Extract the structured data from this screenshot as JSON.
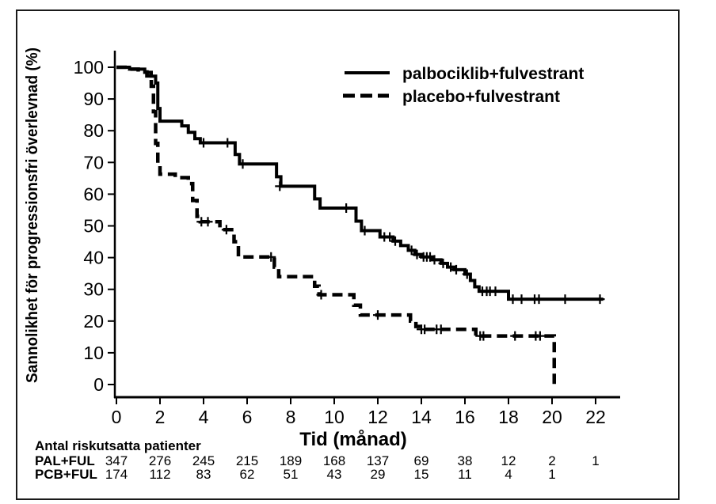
{
  "figure": {
    "background": "#ffffff",
    "border_color": "#1a1a1a",
    "line_color": "#000000"
  },
  "chart_data": {
    "type": "line",
    "subtype": "kaplan-meier-step-survival",
    "title": "",
    "xlabel": "Tid (månad)",
    "ylabel": "Sannolikhet för progressionsfri överlevnad (%)",
    "xlim": [
      0,
      23.2
    ],
    "ylim": [
      0,
      100
    ],
    "x_ticks": [
      0,
      2,
      4,
      6,
      8,
      10,
      12,
      14,
      16,
      18,
      20,
      22
    ],
    "y_ticks": [
      0,
      10,
      20,
      30,
      40,
      50,
      60,
      70,
      80,
      90,
      100
    ],
    "grid": false,
    "legend_position": "top-center-inside",
    "series": [
      {
        "name": "palbociklib+fulvestrant",
        "line_style": "solid",
        "color": "#000000",
        "steps": [
          [
            0,
            100
          ],
          [
            0.6,
            99.4
          ],
          [
            1.3,
            98.4
          ],
          [
            1.6,
            97.2
          ],
          [
            1.8,
            95
          ],
          [
            1.9,
            87
          ],
          [
            2.0,
            83
          ],
          [
            3.0,
            81.5
          ],
          [
            3.3,
            79.5
          ],
          [
            3.6,
            77.5
          ],
          [
            3.85,
            76.2
          ],
          [
            5.45,
            72.5
          ],
          [
            5.65,
            69.5
          ],
          [
            7.35,
            65.5
          ],
          [
            7.55,
            62.5
          ],
          [
            9.1,
            58.5
          ],
          [
            9.35,
            55.6
          ],
          [
            11.0,
            51.5
          ],
          [
            11.25,
            48.5
          ],
          [
            12.1,
            46.5
          ],
          [
            12.7,
            45.2
          ],
          [
            13.05,
            43.8
          ],
          [
            13.4,
            42.3
          ],
          [
            13.7,
            41.0
          ],
          [
            14.0,
            40.2
          ],
          [
            14.5,
            39.3
          ],
          [
            14.9,
            38.2
          ],
          [
            15.2,
            37.0
          ],
          [
            15.5,
            36.2
          ],
          [
            16.0,
            34.8
          ],
          [
            16.25,
            32.8
          ],
          [
            16.45,
            30.8
          ],
          [
            16.65,
            29.4
          ],
          [
            18.0,
            26.9
          ],
          [
            22.35,
            26.9
          ]
        ],
        "censor_marks": [
          [
            4.0,
            76.2
          ],
          [
            5.1,
            76.2
          ],
          [
            5.8,
            69.5
          ],
          [
            7.5,
            62.5
          ],
          [
            10.55,
            55.6
          ],
          [
            11.4,
            48.5
          ],
          [
            12.3,
            46.5
          ],
          [
            12.55,
            46.5
          ],
          [
            12.8,
            45.2
          ],
          [
            13.55,
            42.3
          ],
          [
            13.8,
            41.0
          ],
          [
            14.1,
            40.2
          ],
          [
            14.25,
            40.2
          ],
          [
            14.4,
            40.2
          ],
          [
            14.6,
            39.3
          ],
          [
            15.0,
            38.2
          ],
          [
            15.35,
            37.0
          ],
          [
            15.6,
            36.2
          ],
          [
            16.1,
            34.8
          ],
          [
            16.8,
            29.4
          ],
          [
            17.0,
            29.4
          ],
          [
            17.15,
            29.4
          ],
          [
            17.4,
            29.4
          ],
          [
            18.2,
            26.9
          ],
          [
            18.6,
            26.9
          ],
          [
            19.2,
            26.9
          ],
          [
            19.4,
            26.9
          ],
          [
            20.6,
            26.9
          ],
          [
            22.2,
            26.9
          ]
        ]
      },
      {
        "name": "placebo+fulvestrant",
        "line_style": "dashed",
        "color": "#000000",
        "steps": [
          [
            0,
            100
          ],
          [
            0.5,
            99.4
          ],
          [
            1.0,
            98.5
          ],
          [
            1.4,
            97.3
          ],
          [
            1.6,
            94
          ],
          [
            1.7,
            86
          ],
          [
            1.8,
            76
          ],
          [
            1.9,
            69
          ],
          [
            2.0,
            66.3
          ],
          [
            2.7,
            65.2
          ],
          [
            3.3,
            63.3
          ],
          [
            3.5,
            58
          ],
          [
            3.7,
            53
          ],
          [
            3.85,
            51.3
          ],
          [
            4.75,
            48.8
          ],
          [
            5.4,
            45
          ],
          [
            5.6,
            40.2
          ],
          [
            7.25,
            37
          ],
          [
            7.45,
            34
          ],
          [
            9.1,
            31
          ],
          [
            9.3,
            28.3
          ],
          [
            10.9,
            25
          ],
          [
            11.2,
            21.9
          ],
          [
            13.5,
            20
          ],
          [
            13.75,
            18.3
          ],
          [
            13.95,
            17.4
          ],
          [
            16.5,
            15.3
          ],
          [
            20.1,
            0
          ]
        ],
        "censor_marks": [
          [
            3.9,
            51.3
          ],
          [
            4.2,
            51.3
          ],
          [
            5.05,
            48.8
          ],
          [
            7.1,
            40.2
          ],
          [
            9.4,
            28.3
          ],
          [
            12.0,
            21.9
          ],
          [
            14.0,
            17.4
          ],
          [
            14.15,
            17.4
          ],
          [
            14.7,
            17.4
          ],
          [
            14.9,
            17.4
          ],
          [
            16.7,
            15.3
          ],
          [
            16.85,
            15.3
          ],
          [
            18.3,
            15.3
          ],
          [
            19.25,
            15.3
          ],
          [
            19.45,
            15.3
          ]
        ]
      }
    ]
  },
  "risk_table": {
    "title": "Antal riskutsatta patienter",
    "time_points": [
      0,
      2,
      4,
      6,
      8,
      10,
      12,
      14,
      16,
      18,
      20,
      22
    ],
    "rows": [
      {
        "label": "PAL+FUL",
        "values": [
          "347",
          "276",
          "245",
          "215",
          "189",
          "168",
          "137",
          "69",
          "38",
          "12",
          "2",
          "1"
        ]
      },
      {
        "label": "PCB+FUL",
        "values": [
          "174",
          "112",
          "83",
          "62",
          "51",
          "43",
          "29",
          "15",
          "11",
          "4",
          "1"
        ]
      }
    ]
  }
}
